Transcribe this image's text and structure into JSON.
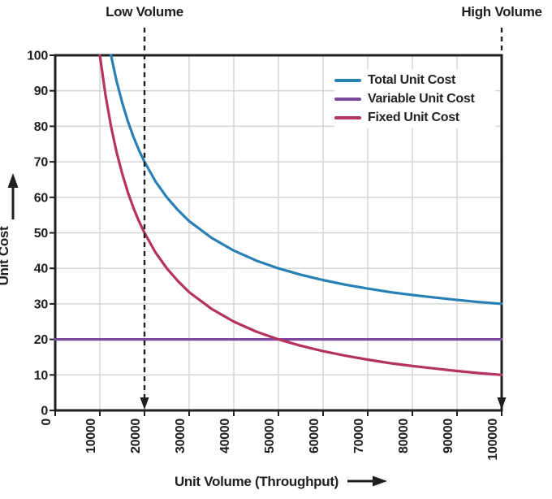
{
  "colors": {
    "axis": "#1f1f1f",
    "grid": "#d6d6d6",
    "text": "#1f1f1f",
    "background": "#ffffff",
    "total_line": "#2980b5",
    "variable_line": "#7c4a9c",
    "fixed_line": "#b5335d"
  },
  "chart_data": {
    "type": "line",
    "title": "",
    "xlabel": "Unit Volume (Throughput)",
    "ylabel": "Unit Cost",
    "xlim": [
      0,
      100000
    ],
    "ylim": [
      0,
      100
    ],
    "x_ticks": [
      0,
      10000,
      20000,
      30000,
      40000,
      50000,
      60000,
      70000,
      80000,
      90000,
      100000
    ],
    "y_ticks": [
      0,
      10,
      20,
      30,
      40,
      50,
      60,
      70,
      80,
      90,
      100
    ],
    "grid": true,
    "legend_position": "top-right",
    "series": [
      {
        "name": "Total Unit Cost",
        "color": "#2980b5",
        "x": [
          12500,
          13750,
          15000,
          16250,
          17500,
          18750,
          20000,
          22500,
          25000,
          27500,
          30000,
          35000,
          40000,
          45000,
          50000,
          55000,
          60000,
          65000,
          70000,
          75000,
          80000,
          85000,
          90000,
          95000,
          100000
        ],
        "y": [
          100,
          92.7,
          86.7,
          81.5,
          77.1,
          73.3,
          70,
          64.4,
          60,
          56.4,
          53.3,
          48.6,
          45,
          42.2,
          40,
          38.2,
          36.7,
          35.4,
          34.3,
          33.3,
          32.5,
          31.8,
          31.1,
          30.5,
          30
        ]
      },
      {
        "name": "Variable Unit Cost",
        "color": "#7c4a9c",
        "x": [
          0,
          100000
        ],
        "y": [
          20,
          20
        ]
      },
      {
        "name": "Fixed Unit Cost",
        "color": "#b5335d",
        "x": [
          10000,
          11250,
          12500,
          13750,
          15000,
          16250,
          17500,
          18750,
          20000,
          22500,
          25000,
          27500,
          30000,
          35000,
          40000,
          45000,
          50000,
          55000,
          60000,
          65000,
          70000,
          75000,
          80000,
          85000,
          90000,
          95000,
          100000
        ],
        "y": [
          100,
          88.9,
          80,
          72.7,
          66.7,
          61.5,
          57.1,
          53.3,
          50,
          44.4,
          40,
          36.4,
          33.3,
          28.6,
          25,
          22.2,
          20,
          18.2,
          16.7,
          15.4,
          14.3,
          13.3,
          12.5,
          11.8,
          11.1,
          10.5,
          10
        ]
      }
    ],
    "annotations": [
      {
        "label": "Low Volume",
        "x": 20000,
        "style": "dashed-vertical-line-arrow-down"
      },
      {
        "label": "High Volume",
        "x": 100000,
        "style": "dashed-vertical-line-arrow-down"
      }
    ]
  }
}
